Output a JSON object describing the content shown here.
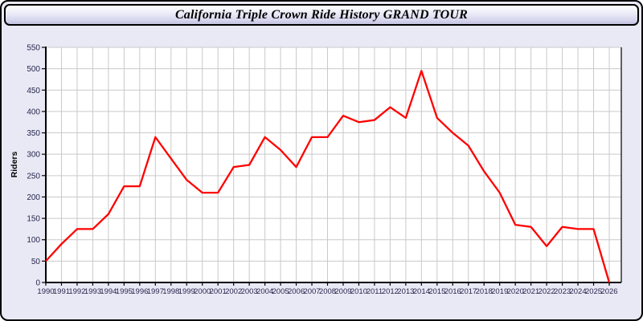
{
  "window": {
    "title": "California Triple Crown Ride History GRAND TOUR"
  },
  "colors": {
    "line": "#ff0000",
    "window_background": "#e9e9f6",
    "plot_background": "#ffffff",
    "gridline": "#c9c9c9",
    "axis": "#000000",
    "tick_label": "#26264d"
  },
  "chart_data": {
    "type": "line",
    "title": "California Triple Crown Ride History GRAND TOUR",
    "xlabel": "",
    "ylabel": "Riders",
    "legend": "none",
    "grid": true,
    "ylim": [
      0,
      550
    ],
    "ytick_step": 50,
    "x": [
      1990,
      1991,
      1992,
      1993,
      1994,
      1995,
      1996,
      1997,
      1998,
      1999,
      2000,
      2001,
      2002,
      2003,
      2004,
      2005,
      2006,
      2007,
      2008,
      2009,
      2010,
      2011,
      2012,
      2013,
      2014,
      2015,
      2016,
      2017,
      2018,
      2019,
      2020,
      2021,
      2022,
      2023,
      2024,
      2025,
      2026
    ],
    "series": [
      {
        "name": "Riders",
        "values": [
          50,
          90,
          125,
          125,
          160,
          225,
          225,
          340,
          290,
          240,
          210,
          210,
          270,
          275,
          340,
          310,
          270,
          340,
          340,
          390,
          375,
          380,
          410,
          385,
          495,
          385,
          350,
          320,
          260,
          210,
          135,
          130,
          85,
          130,
          125,
          125,
          0
        ]
      }
    ]
  }
}
